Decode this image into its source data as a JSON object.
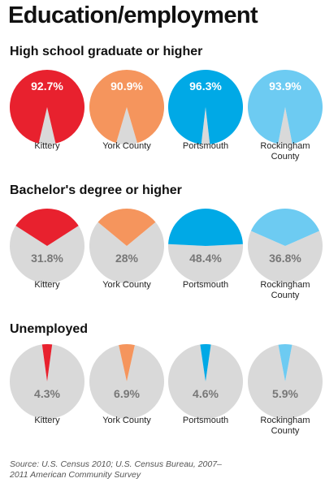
{
  "title": "Education/employment",
  "source": "Source: U.S. Census 2010; U.S. Census Bureau, 2007–2011 American Community Survey",
  "colors": {
    "kittery": "#e8212e",
    "york": "#f5955d",
    "portsmouth": "#00a9e6",
    "rockingham": "#6dcbf2",
    "remainder": "#d9d9d9",
    "label_on_color": "#ffffff",
    "label_on_gray": "#777777"
  },
  "chart_data": [
    {
      "type": "pie",
      "title": "High school graduate or higher",
      "categories": [
        "Kittery",
        "York County",
        "Portsmouth",
        "Rockingham\nCounty"
      ],
      "values": [
        92.7,
        90.9,
        96.3,
        93.9
      ],
      "labels": [
        "92.7%",
        "90.9%",
        "96.3%",
        "93.9%"
      ],
      "unit": "%"
    },
    {
      "type": "pie",
      "title": "Bachelor's degree or higher",
      "categories": [
        "Kittery",
        "York County",
        "Portsmouth",
        "Rockingham\nCounty"
      ],
      "values": [
        31.8,
        28,
        48.4,
        36.8
      ],
      "labels": [
        "31.8%",
        "28%",
        "48.4%",
        "36.8%"
      ],
      "unit": "%"
    },
    {
      "type": "pie",
      "title": "Unemployed",
      "categories": [
        "Kittery",
        "York County",
        "Portsmouth",
        "Rockingham\nCounty"
      ],
      "values": [
        4.3,
        6.9,
        4.6,
        5.9
      ],
      "labels": [
        "4.3%",
        "6.9%",
        "4.6%",
        "5.9%"
      ],
      "unit": "%"
    }
  ]
}
